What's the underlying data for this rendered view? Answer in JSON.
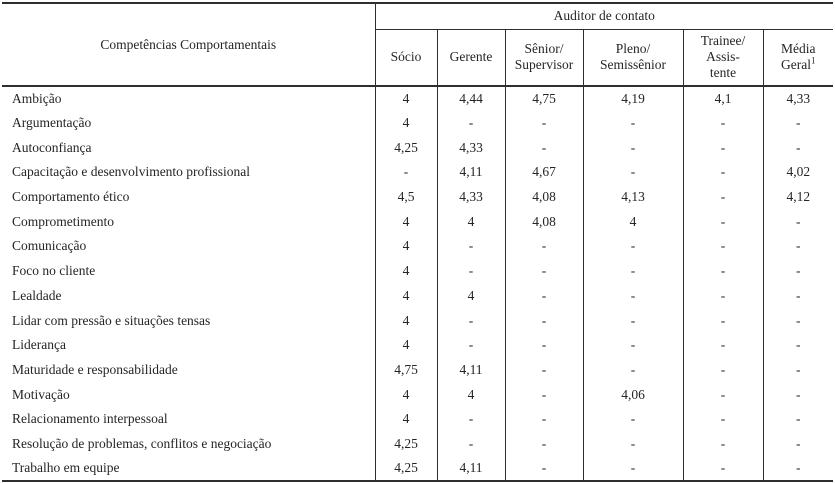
{
  "table": {
    "row_header_title": "Competências Comportamentais",
    "group_header": "Auditor de contato",
    "columns": [
      {
        "lines": [
          "Sócio"
        ]
      },
      {
        "lines": [
          "Gerente"
        ]
      },
      {
        "lines": [
          "Sênior/",
          "Supervisor"
        ]
      },
      {
        "lines": [
          "Pleno/",
          "Semissênior"
        ]
      },
      {
        "lines": [
          "Trainee/",
          "Assis-",
          "tente"
        ]
      },
      {
        "lines": [
          "Média",
          "Geral"
        ],
        "superscript": "1"
      }
    ],
    "rows": [
      {
        "label": "Ambição",
        "values": [
          "4",
          "4,44",
          "4,75",
          "4,19",
          "4,1",
          "4,33"
        ]
      },
      {
        "label": "Argumentação",
        "values": [
          "4",
          "-",
          "-",
          "-",
          "-",
          "-"
        ]
      },
      {
        "label": "Autoconfiança",
        "values": [
          "4,25",
          "4,33",
          "-",
          "-",
          "-",
          "-"
        ]
      },
      {
        "label": "Capacitação e desenvolvimento profissional",
        "values": [
          "-",
          "4,11",
          "4,67",
          "-",
          "-",
          "4,02"
        ]
      },
      {
        "label": "Comportamento ético",
        "values": [
          "4,5",
          "4,33",
          "4,08",
          "4,13",
          "-",
          "4,12"
        ]
      },
      {
        "label": "Comprometimento",
        "values": [
          "4",
          "4",
          "4,08",
          "4",
          "-",
          "-"
        ]
      },
      {
        "label": "Comunicação",
        "values": [
          "4",
          "-",
          "-",
          "-",
          "-",
          "-"
        ]
      },
      {
        "label": "Foco no cliente",
        "values": [
          "4",
          "-",
          "-",
          "-",
          "-",
          "-"
        ]
      },
      {
        "label": "Lealdade",
        "values": [
          "4",
          "4",
          "-",
          "-",
          "-",
          "-"
        ]
      },
      {
        "label": "Lidar com pressão e situações tensas",
        "values": [
          "4",
          "-",
          "-",
          "-",
          "-",
          "-"
        ]
      },
      {
        "label": "Liderança",
        "values": [
          "4",
          "-",
          "-",
          "-",
          "-",
          "-"
        ]
      },
      {
        "label": "Maturidade e responsabilidade",
        "values": [
          "4,75",
          "4,11",
          "-",
          "-",
          "-",
          "-"
        ]
      },
      {
        "label": "Motivação",
        "values": [
          "4",
          "4",
          "-",
          "4,06",
          "-",
          "-"
        ]
      },
      {
        "label": "Relacionamento interpessoal",
        "values": [
          "4",
          "-",
          "-",
          "-",
          "-",
          "-"
        ]
      },
      {
        "label": "Resolução de problemas, conflitos e negociação",
        "values": [
          "4,25",
          "-",
          "-",
          "-",
          "-",
          "-"
        ]
      },
      {
        "label": "Trabalho em equipe",
        "values": [
          "4,25",
          "4,11",
          "-",
          "-",
          "-",
          "-"
        ]
      }
    ]
  }
}
